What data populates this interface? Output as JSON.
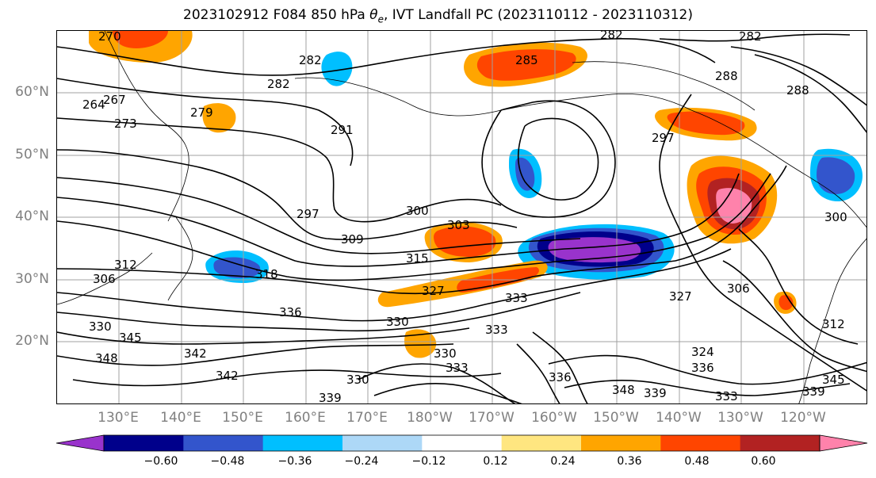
{
  "title": {
    "prefix": "2023102912 F084 850 hPa ",
    "symbol": "θ",
    "subscript": "e",
    "suffix": ", IVT Landfall PC (2023110112 - 2023110312)"
  },
  "map": {
    "lat_labels": [
      "60°N",
      "50°N",
      "40°N",
      "30°N",
      "20°N"
    ],
    "lon_labels": [
      "130°E",
      "140°E",
      "150°E",
      "160°E",
      "170°E",
      "180°W",
      "170°W",
      "160°W",
      "150°W",
      "140°W",
      "130°W",
      "120°W"
    ],
    "contour_labels": [
      "282",
      "282",
      "282",
      "288",
      "282",
      "285",
      "267",
      "264",
      "273",
      "279",
      "291",
      "297",
      "300",
      "303",
      "309",
      "315",
      "318",
      "312",
      "306",
      "327",
      "333",
      "336",
      "330",
      "345",
      "348",
      "342",
      "336",
      "339",
      "333",
      "336",
      "330",
      "339",
      "333",
      "345",
      "306",
      "312",
      "270",
      "288",
      "297",
      "300",
      "327",
      "324",
      "330",
      "339",
      "333",
      "342",
      "348",
      "330"
    ],
    "shading_colors": {
      "purple": "#9933cc",
      "navy": "#00008b",
      "blue": "#3355cc",
      "cyan": "#00bfff",
      "lightblue": "#add8f7",
      "yellow": "#ffe680",
      "orange": "#ffa500",
      "redorange": "#ff4500",
      "darkred": "#b22222",
      "pink": "#ff82ab"
    }
  },
  "colorbar": {
    "colors": [
      "#9933cc",
      "#00008b",
      "#3355cc",
      "#00bfff",
      "#add8f7",
      "#ffffff",
      "#ffe680",
      "#ffa500",
      "#ff4500",
      "#b22222",
      "#ff82ab"
    ],
    "ticks": [
      "−0.60",
      "−0.48",
      "−0.36",
      "−0.24",
      "−0.12",
      "0.12",
      "0.24",
      "0.36",
      "0.48",
      "0.60"
    ]
  }
}
